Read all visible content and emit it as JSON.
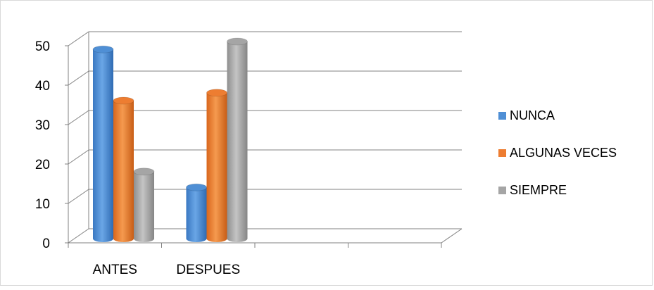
{
  "chart_data": {
    "type": "bar",
    "title": "",
    "xlabel": "",
    "ylabel": "",
    "categories": [
      "ANTES",
      "DESPUES",
      "",
      ""
    ],
    "series": [
      {
        "name": "NUNCA",
        "values": [
          48,
          13,
          null,
          null
        ],
        "color": "#4f8fd5"
      },
      {
        "name": "ALGUNAS VECES",
        "values": [
          35,
          37,
          null,
          null
        ],
        "color": "#ed7d31"
      },
      {
        "name": "SIEMPRE",
        "values": [
          17,
          50,
          null,
          null
        ],
        "color": "#a5a5a5"
      }
    ],
    "ylim": [
      0,
      50
    ],
    "yticks": [
      0,
      10,
      20,
      30,
      40,
      50
    ],
    "grid": true,
    "legend": "right",
    "style": "3d-cylinder"
  }
}
